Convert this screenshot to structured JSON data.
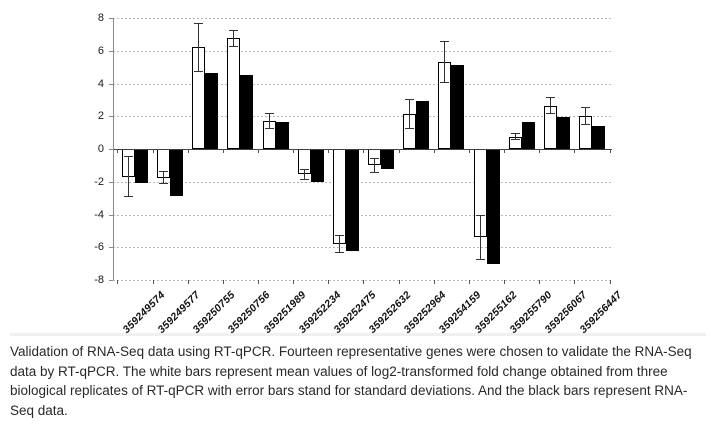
{
  "chart_data": {
    "type": "bar",
    "title": "",
    "xlabel": "",
    "ylabel": "",
    "ylim": [
      -8,
      8
    ],
    "yticks": [
      8,
      6,
      4,
      2,
      0,
      -2,
      -4,
      -6,
      -8
    ],
    "grid": true,
    "legend_position": "none",
    "categories": [
      "359249574",
      "359249577",
      "359250755",
      "359250756",
      "359251989",
      "359252234",
      "359252475",
      "359252632",
      "359252964",
      "359254159",
      "359255162",
      "359255790",
      "359256067",
      "359256447"
    ],
    "series": [
      {
        "name": "RT-qPCR mean log2-transformed fold change (white bars)",
        "fill": "#ffffff",
        "values": [
          -1.7,
          -1.75,
          6.2,
          6.75,
          1.7,
          -1.55,
          -5.8,
          -1.0,
          2.15,
          5.3,
          -5.4,
          0.75,
          2.65,
          2.0
        ],
        "errors": [
          1.25,
          0.4,
          1.5,
          0.5,
          0.5,
          0.35,
          0.55,
          0.45,
          0.9,
          1.3,
          1.35,
          0.2,
          0.5,
          0.55
        ]
      },
      {
        "name": "RNA-Seq (black bars)",
        "fill": "#000000",
        "values": [
          -2.1,
          -2.85,
          4.65,
          4.5,
          1.65,
          -2.0,
          -6.2,
          -1.25,
          2.95,
          5.15,
          -7.05,
          1.65,
          1.95,
          1.4
        ]
      }
    ]
  },
  "caption": {
    "lines": [
      "Validation of RNA-Seq data using RT-qPCR. Fourteen representative genes were chosen to validate the RNA-Seq",
      "data by RT-qPCR. The white bars represent mean values of log2-transformed fold change obtained from three",
      "biological replicates of RT-qPCR with error bars stand for standard deviations. And the black bars represent RNA-",
      "Seq data."
    ]
  },
  "colors": {
    "accent_blue": "#4285f4",
    "grid": "#b8b8b8",
    "axis": "#8a8a8a",
    "zero_axis": "#3f3f3f",
    "bar_black": "#000000",
    "bar_white": "#ffffff"
  }
}
